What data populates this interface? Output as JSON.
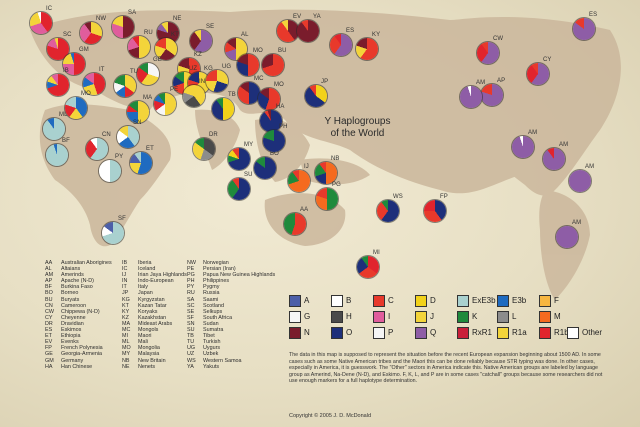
{
  "title": {
    "line1": "Y Haplogroups",
    "line2": "of the World"
  },
  "haplogroups": [
    {
      "code": "A",
      "color": "#4c5fa8"
    },
    {
      "code": "B",
      "color": "#ffffff"
    },
    {
      "code": "C",
      "color": "#e8392b"
    },
    {
      "code": "D",
      "color": "#f2d21a"
    },
    {
      "code": "ExE3b",
      "color": "#a9d1cf"
    },
    {
      "code": "E3b",
      "color": "#1f6bc0"
    },
    {
      "code": "F",
      "color": "#f7b640"
    },
    {
      "code": "G",
      "color": "#f6f6f6"
    },
    {
      "code": "H",
      "color": "#4a4a4a"
    },
    {
      "code": "I",
      "color": "#e05d9c"
    },
    {
      "code": "J",
      "color": "#f3d43a"
    },
    {
      "code": "K",
      "color": "#1f8a3c"
    },
    {
      "code": "L",
      "color": "#8c8c8c"
    },
    {
      "code": "M",
      "color": "#f56a1f"
    },
    {
      "code": "N",
      "color": "#7a1c2c"
    },
    {
      "code": "O",
      "color": "#1d2f7a"
    },
    {
      "code": "P",
      "color": "#f5f5f5"
    },
    {
      "code": "Q",
      "color": "#8e5da6"
    },
    {
      "code": "RxR1",
      "color": "#c91f3a"
    },
    {
      "code": "R1a",
      "color": "#f3d43a"
    },
    {
      "code": "R1b",
      "color": "#e1242d"
    },
    {
      "code": "Other",
      "color": "#ffffff"
    }
  ],
  "abbreviations": [
    [
      [
        "AA",
        "Australian Aborigines"
      ],
      [
        "AL",
        "Altaians"
      ],
      [
        "AM",
        "Amerinds"
      ],
      [
        "AP",
        "Apache (N-D)"
      ],
      [
        "BF",
        "Burkina Faso"
      ],
      [
        "BO",
        "Borneo"
      ],
      [
        "BU",
        "Buryats"
      ],
      [
        "CN",
        "Cameroon"
      ],
      [
        "CW",
        "Chippewa (N-D)"
      ],
      [
        "CY",
        "Cheyenne"
      ],
      [
        "DR",
        "Dravidian"
      ],
      [
        "ES",
        "Eskimos"
      ],
      [
        "ET",
        "Ethiopia"
      ],
      [
        "EV",
        "Evenks"
      ],
      [
        "FP",
        "French Polynesia"
      ],
      [
        "GE",
        "Georgia-Armenia"
      ],
      [
        "GM",
        "Germany"
      ],
      [
        "HA",
        "Han Chinese"
      ]
    ],
    [
      [
        "IB",
        "Iberia"
      ],
      [
        "IC",
        "Iceland"
      ],
      [
        "IJ",
        "Irian Jaya Highlands"
      ],
      [
        "IN",
        "Indo-European"
      ],
      [
        "IT",
        "Italy"
      ],
      [
        "JP",
        "Japan"
      ],
      [
        "KG",
        "Kyrgyzstan"
      ],
      [
        "KT",
        "Kazan Tatar"
      ],
      [
        "KY",
        "Koryaks"
      ],
      [
        "KZ",
        "Kazakhstan"
      ],
      [
        "MA",
        "Mideast Arabs"
      ],
      [
        "MC",
        "Mongols"
      ],
      [
        "MI",
        "Maori"
      ],
      [
        "ML",
        "Mali"
      ],
      [
        "MO",
        "Mongolia"
      ],
      [
        "MY",
        "Malaysia"
      ],
      [
        "NB",
        "New Britain"
      ],
      [
        "NE",
        "Nenets"
      ]
    ],
    [
      [
        "NW",
        "Norwegian"
      ],
      [
        "PE",
        "Persian (Iran)"
      ],
      [
        "PG",
        "Papua New Guinea Highlands"
      ],
      [
        "PH",
        "Philippines"
      ],
      [
        "PY",
        "Pygmy"
      ],
      [
        "RU",
        "Russia"
      ],
      [
        "SA",
        "Saami"
      ],
      [
        "SC",
        "Scotland"
      ],
      [
        "SE",
        "Selkups"
      ],
      [
        "SF",
        "South Africa"
      ],
      [
        "SN",
        "Sudan"
      ],
      [
        "SU",
        "Sumatra"
      ],
      [
        "TB",
        "Tibet"
      ],
      [
        "TU",
        "Turkish"
      ],
      [
        "UG",
        "Uygurs"
      ],
      [
        "UZ",
        "Uzbek"
      ],
      [
        "WS",
        "Western Samoa"
      ],
      [
        "YA",
        "Yakuts"
      ]
    ]
  ],
  "populations": [
    {
      "code": "IC",
      "slices": [
        [
          "R1b",
          0.4
        ],
        [
          "I",
          0.3
        ],
        [
          "R1a",
          0.25
        ],
        [
          "Other",
          0.05
        ]
      ]
    },
    {
      "code": "NW",
      "slices": [
        [
          "R1a",
          0.3
        ],
        [
          "R1b",
          0.3
        ],
        [
          "I",
          0.3
        ],
        [
          "N",
          0.1
        ]
      ]
    },
    {
      "code": "SA",
      "slices": [
        [
          "N",
          0.5
        ],
        [
          "I",
          0.3
        ],
        [
          "R1a",
          0.2
        ]
      ]
    },
    {
      "code": "NE",
      "slices": [
        [
          "N",
          0.8
        ],
        [
          "Q",
          0.1
        ],
        [
          "R1a",
          0.1
        ]
      ]
    },
    {
      "code": "SE",
      "slices": [
        [
          "Q",
          0.6
        ],
        [
          "N",
          0.3
        ],
        [
          "R1a",
          0.1
        ]
      ]
    },
    {
      "code": "EV",
      "slices": [
        [
          "N",
          0.4
        ],
        [
          "C",
          0.5
        ],
        [
          "R1a",
          0.1
        ]
      ]
    },
    {
      "code": "YA",
      "slices": [
        [
          "N",
          0.9
        ],
        [
          "C",
          0.1
        ]
      ]
    },
    {
      "code": "ES",
      "slices": [
        [
          "Q",
          0.6
        ],
        [
          "C",
          0.3
        ],
        [
          "R1b",
          0.1
        ]
      ]
    },
    {
      "code": "KY",
      "slices": [
        [
          "C",
          0.6
        ],
        [
          "R1a",
          0.2
        ],
        [
          "N",
          0.2
        ]
      ]
    },
    {
      "code": "SC",
      "slices": [
        [
          "R1b",
          0.8
        ],
        [
          "I",
          0.15
        ],
        [
          "R1a",
          0.05
        ]
      ]
    },
    {
      "code": "GM",
      "slices": [
        [
          "R1b",
          0.5
        ],
        [
          "I",
          0.25
        ],
        [
          "R1a",
          0.2
        ],
        [
          "E3b",
          0.05
        ]
      ]
    },
    {
      "code": "RU",
      "slices": [
        [
          "R1a",
          0.5
        ],
        [
          "N",
          0.2
        ],
        [
          "I",
          0.2
        ],
        [
          "R1b",
          0.1
        ]
      ]
    },
    {
      "code": "KT",
      "slices": [
        [
          "R1a",
          0.35
        ],
        [
          "N",
          0.25
        ],
        [
          "J",
          0.2
        ],
        [
          "C",
          0.2
        ]
      ]
    },
    {
      "code": "AL",
      "slices": [
        [
          "R1a",
          0.5
        ],
        [
          "Q",
          0.2
        ],
        [
          "C",
          0.15
        ],
        [
          "N",
          0.15
        ]
      ]
    },
    {
      "code": "MO",
      "slices": [
        [
          "C",
          0.5
        ],
        [
          "O",
          0.3
        ],
        [
          "N",
          0.2
        ]
      ]
    },
    {
      "code": "BU",
      "slices": [
        [
          "C",
          0.7
        ],
        [
          "N",
          0.3
        ]
      ]
    },
    {
      "code": "IB",
      "slices": [
        [
          "R1b",
          0.7
        ],
        [
          "E3b",
          0.1
        ],
        [
          "J",
          0.1
        ],
        [
          "I",
          0.1
        ]
      ]
    },
    {
      "code": "IT",
      "slices": [
        [
          "R1b",
          0.45
        ],
        [
          "J",
          0.25
        ],
        [
          "E3b",
          0.15
        ],
        [
          "I",
          0.15
        ]
      ]
    },
    {
      "code": "TU",
      "slices": [
        [
          "J",
          0.35
        ],
        [
          "R1b",
          0.15
        ],
        [
          "E3b",
          0.15
        ],
        [
          "G",
          0.15
        ],
        [
          "K",
          0.2
        ]
      ]
    },
    {
      "code": "GE",
      "slices": [
        [
          "G",
          0.3
        ],
        [
          "J",
          0.3
        ],
        [
          "R1b",
          0.25
        ],
        [
          "K",
          0.15
        ]
      ]
    },
    {
      "code": "KZ",
      "slices": [
        [
          "C",
          0.5
        ],
        [
          "R1a",
          0.3
        ],
        [
          "N",
          0.2
        ]
      ]
    },
    {
      "code": "UZ",
      "slices": [
        [
          "R1a",
          0.3
        ],
        [
          "J",
          0.2
        ],
        [
          "C",
          0.2
        ],
        [
          "O",
          0.15
        ],
        [
          "K",
          0.15
        ]
      ]
    },
    {
      "code": "KG",
      "slices": [
        [
          "R1a",
          0.6
        ],
        [
          "C",
          0.2
        ],
        [
          "O",
          0.2
        ]
      ]
    },
    {
      "code": "UG",
      "slices": [
        [
          "R1a",
          0.3
        ],
        [
          "O",
          0.25
        ],
        [
          "J",
          0.2
        ],
        [
          "C",
          0.25
        ]
      ]
    },
    {
      "code": "MC",
      "slices": [
        [
          "O",
          0.5
        ],
        [
          "C",
          0.35
        ],
        [
          "N",
          0.15
        ]
      ]
    },
    {
      "code": "MO2",
      "slices": [
        [
          "C",
          0.55
        ],
        [
          "O",
          0.3
        ],
        [
          "N",
          0.15
        ]
      ]
    },
    {
      "code": "MA",
      "slices": [
        [
          "J",
          0.5
        ],
        [
          "E3b",
          0.25
        ],
        [
          "R1b",
          0.1
        ],
        [
          "K",
          0.15
        ]
      ]
    },
    {
      "code": "PE",
      "slices": [
        [
          "J",
          0.3
        ],
        [
          "R1a",
          0.2
        ],
        [
          "G",
          0.15
        ],
        [
          "R1b",
          0.15
        ],
        [
          "E3b",
          0.1
        ],
        [
          "K",
          0.1
        ]
      ]
    },
    {
      "code": "IN",
      "slices": [
        [
          "R1a",
          0.4
        ],
        [
          "H",
          0.25
        ],
        [
          "L",
          0.15
        ],
        [
          "J",
          0.2
        ]
      ]
    },
    {
      "code": "TB",
      "slices": [
        [
          "D",
          0.5
        ],
        [
          "O",
          0.4
        ],
        [
          "K",
          0.1
        ]
      ]
    },
    {
      "code": "HA",
      "slices": [
        [
          "O",
          0.9
        ],
        [
          "C",
          0.05
        ],
        [
          "N",
          0.05
        ]
      ]
    },
    {
      "code": "JP",
      "slices": [
        [
          "D",
          0.35
        ],
        [
          "O",
          0.55
        ],
        [
          "C",
          0.1
        ]
      ]
    },
    {
      "code": "MO3",
      "slices": [
        [
          "E3b",
          0.4
        ],
        [
          "J",
          0.2
        ],
        [
          "R1b",
          0.2
        ],
        [
          "ExE3b",
          0.2
        ]
      ]
    },
    {
      "code": "ML",
      "slices": [
        [
          "ExE3b",
          0.9
        ],
        [
          "E3b",
          0.1
        ]
      ]
    },
    {
      "code": "SN",
      "slices": [
        [
          "ExE3b",
          0.4
        ],
        [
          "E3b",
          0.25
        ],
        [
          "B",
          0.2
        ],
        [
          "J",
          0.15
        ]
      ]
    },
    {
      "code": "ET",
      "slices": [
        [
          "E3b",
          0.55
        ],
        [
          "J",
          0.2
        ],
        [
          "A",
          0.15
        ],
        [
          "ExE3b",
          0.1
        ]
      ]
    },
    {
      "code": "BF",
      "slices": [
        [
          "ExE3b",
          0.95
        ],
        [
          "E3b",
          0.05
        ]
      ]
    },
    {
      "code": "CN",
      "slices": [
        [
          "ExE3b",
          0.6
        ],
        [
          "R1b",
          0.3
        ],
        [
          "B",
          0.1
        ]
      ]
    },
    {
      "code": "PY",
      "slices": [
        [
          "ExE3b",
          0.5
        ],
        [
          "B",
          0.5
        ]
      ]
    },
    {
      "code": "SF",
      "slices": [
        [
          "ExE3b",
          0.7
        ],
        [
          "B",
          0.15
        ],
        [
          "A",
          0.15
        ]
      ]
    },
    {
      "code": "DR",
      "slices": [
        [
          "H",
          0.35
        ],
        [
          "L",
          0.2
        ],
        [
          "R1a",
          0.15
        ],
        [
          "J",
          0.15
        ],
        [
          "K",
          0.15
        ]
      ]
    },
    {
      "code": "MY",
      "slices": [
        [
          "O",
          0.7
        ],
        [
          "K",
          0.1
        ],
        [
          "D",
          0.1
        ],
        [
          "C",
          0.1
        ]
      ]
    },
    {
      "code": "BO",
      "slices": [
        [
          "O",
          0.85
        ],
        [
          "K",
          0.15
        ]
      ]
    },
    {
      "code": "SU",
      "slices": [
        [
          "O",
          0.6
        ],
        [
          "K",
          0.3
        ],
        [
          "C",
          0.1
        ]
      ]
    },
    {
      "code": "PH",
      "slices": [
        [
          "O",
          0.8
        ],
        [
          "K",
          0.2
        ]
      ]
    },
    {
      "code": "IJ",
      "slices": [
        [
          "M",
          0.7
        ],
        [
          "K",
          0.2
        ],
        [
          "C",
          0.1
        ]
      ]
    },
    {
      "code": "NB",
      "slices": [
        [
          "M",
          0.5
        ],
        [
          "O",
          0.2
        ],
        [
          "K",
          0.2
        ],
        [
          "C",
          0.1
        ]
      ]
    },
    {
      "code": "PG",
      "slices": [
        [
          "K",
          0.5
        ],
        [
          "M",
          0.3
        ],
        [
          "C",
          0.2
        ]
      ]
    },
    {
      "code": "AA",
      "slices": [
        [
          "C",
          0.55
        ],
        [
          "K",
          0.45
        ]
      ]
    },
    {
      "code": "WS",
      "slices": [
        [
          "O",
          0.6
        ],
        [
          "C",
          0.3
        ],
        [
          "K",
          0.1
        ]
      ]
    },
    {
      "code": "FP",
      "slices": [
        [
          "O",
          0.4
        ],
        [
          "C",
          0.35
        ],
        [
          "R1b",
          0.25
        ]
      ]
    },
    {
      "code": "MI",
      "slices": [
        [
          "R1b",
          0.35
        ],
        [
          "C",
          0.3
        ],
        [
          "O",
          0.25
        ],
        [
          "K",
          0.1
        ]
      ]
    },
    {
      "code": "CW",
      "slices": [
        [
          "Q",
          0.6
        ],
        [
          "R1b",
          0.3
        ],
        [
          "C",
          0.1
        ]
      ]
    },
    {
      "code": "CY",
      "slices": [
        [
          "Q",
          0.6
        ],
        [
          "R1b",
          0.3
        ],
        [
          "C",
          0.1
        ]
      ]
    },
    {
      "code": "AP",
      "slices": [
        [
          "Q",
          0.8
        ],
        [
          "C",
          0.2
        ]
      ]
    },
    {
      "code": "AM1",
      "slices": [
        [
          "Q",
          0.95
        ],
        [
          "Other",
          0.05
        ]
      ]
    },
    {
      "code": "AM2",
      "slices": [
        [
          "Q",
          0.95
        ],
        [
          "Other",
          0.05
        ]
      ]
    },
    {
      "code": "AM3",
      "slices": [
        [
          "Q",
          0.9
        ],
        [
          "R1b",
          0.1
        ]
      ]
    },
    {
      "code": "ES2",
      "slices": [
        [
          "Q",
          0.85
        ],
        [
          "C",
          0.15
        ]
      ]
    },
    {
      "code": "AM4",
      "slices": [
        [
          "Q",
          1.0
        ]
      ]
    },
    {
      "code": "AM5",
      "slices": [
        [
          "Q",
          1.0
        ]
      ]
    }
  ],
  "note": "The data in this map is supposed to represent the situation before the recent European expansion beginning about 1500 AD. In some cases such as some Native American tribes and the Maori this can be done reliably because STR typing was done. In other cases, especially in America, it is guesswork. The \"Other\" sectors in America indicate this. Native American groups are labeled by language group as Amerind, Na-Dene (N-D), and Eskimo. F, K, L, and P are in some cases \"catchall\" groups because some researchers did not use enough markers for a full haplotype determination.",
  "copyright": "Copyright © 2005 J. D. McDonald"
}
